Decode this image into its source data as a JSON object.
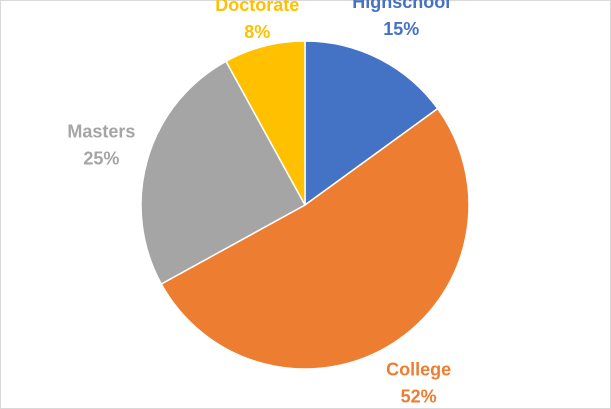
{
  "chart_data": {
    "type": "pie",
    "categories": [
      "Highschool",
      "College",
      "Masters",
      "Doctorate"
    ],
    "values": [
      15,
      52,
      25,
      8
    ],
    "value_labels": [
      "15%",
      "52%",
      "25%",
      "8%"
    ],
    "colors": [
      "#4472c4",
      "#ed7d31",
      "#a5a5a5",
      "#ffc000"
    ]
  }
}
